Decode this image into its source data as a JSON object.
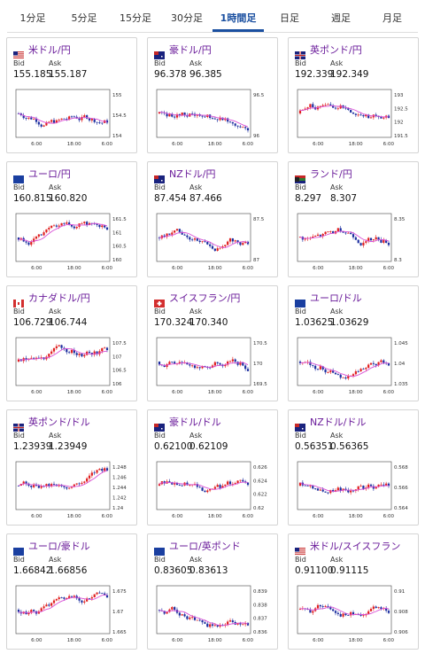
{
  "tabs": [
    {
      "label": "1分足",
      "active": false
    },
    {
      "label": "5分足",
      "active": false
    },
    {
      "label": "15分足",
      "active": false
    },
    {
      "label": "30分足",
      "active": false
    },
    {
      "label": "1時間足",
      "active": true
    },
    {
      "label": "日足",
      "active": false
    },
    {
      "label": "週足",
      "active": false
    },
    {
      "label": "月足",
      "active": false
    }
  ],
  "labels": {
    "bid": "Bid",
    "ask": "Ask"
  },
  "colors": {
    "up": "#e02020",
    "down": "#1d2fa0",
    "ma": "#d94fd6",
    "accent": "#1a4fa0",
    "pair": "#6a1b9a"
  },
  "cards": [
    {
      "pair": "米ドル/円",
      "flag": "us",
      "bid": "155.185",
      "ask": "155.187",
      "x_ticks": [
        "6:00",
        "18:00",
        "6:00"
      ],
      "y_ticks": [
        "155",
        "154.5",
        "154"
      ]
    },
    {
      "pair": "豪ドル/円",
      "flag": "au",
      "bid": "96.378",
      "ask": "96.385",
      "x_ticks": [
        "6:00",
        "18:00",
        "6:00"
      ],
      "y_ticks": [
        "96.5",
        "96"
      ]
    },
    {
      "pair": "英ポンド/円",
      "flag": "uk",
      "bid": "192.339",
      "ask": "192.349",
      "x_ticks": [
        "6:00",
        "18:00",
        "6:00"
      ],
      "y_ticks": [
        "193",
        "192.5",
        "192",
        "191.5"
      ]
    },
    {
      "pair": "ユーロ/円",
      "flag": "eu",
      "bid": "160.815",
      "ask": "160.820",
      "x_ticks": [
        "6:00",
        "18:00",
        "6:00"
      ],
      "y_ticks": [
        "161.5",
        "161",
        "160.5",
        "160"
      ]
    },
    {
      "pair": "NZドル/円",
      "flag": "nz",
      "bid": "87.454",
      "ask": "87.466",
      "x_ticks": [
        "6:00",
        "18:00",
        "6:00"
      ],
      "y_ticks": [
        "87.5",
        "87"
      ]
    },
    {
      "pair": "ランド/円",
      "flag": "za",
      "bid": "8.297",
      "ask": "8.307",
      "x_ticks": [
        "6:00",
        "18:00",
        "6:00"
      ],
      "y_ticks": [
        "8.35",
        "8.3"
      ]
    },
    {
      "pair": "カナダドル/円",
      "flag": "ca",
      "bid": "106.729",
      "ask": "106.744",
      "x_ticks": [
        "6:00",
        "18:00",
        "6:00"
      ],
      "y_ticks": [
        "107.5",
        "107",
        "106.5",
        "106"
      ]
    },
    {
      "pair": "スイスフラン/円",
      "flag": "ch",
      "bid": "170.324",
      "ask": "170.340",
      "x_ticks": [
        "6:00",
        "18:00",
        "6:00"
      ],
      "y_ticks": [
        "170.5",
        "170",
        "169.5"
      ]
    },
    {
      "pair": "ユーロ/ドル",
      "flag": "eu",
      "bid": "1.03625",
      "ask": "1.03629",
      "x_ticks": [
        "6:00",
        "18:00",
        "6:00"
      ],
      "y_ticks": [
        "1.045",
        "1.04",
        "1.035"
      ]
    },
    {
      "pair": "英ポンド/ドル",
      "flag": "uk",
      "bid": "1.23939",
      "ask": "1.23949",
      "x_ticks": [
        "6:00",
        "18:00",
        "6:00"
      ],
      "y_ticks": [
        "1.248",
        "1.246",
        "1.244",
        "1.242",
        "1.24"
      ]
    },
    {
      "pair": "豪ドル/ドル",
      "flag": "au",
      "bid": "0.62100",
      "ask": "0.62109",
      "x_ticks": [
        "6:00",
        "18:00",
        "6:00"
      ],
      "y_ticks": [
        "0.626",
        "0.624",
        "0.622",
        "0.62"
      ]
    },
    {
      "pair": "NZドル/ドル",
      "flag": "nz",
      "bid": "0.56351",
      "ask": "0.56365",
      "x_ticks": [
        "6:00",
        "18:00",
        "6:00"
      ],
      "y_ticks": [
        "0.568",
        "0.566",
        "0.564"
      ]
    },
    {
      "pair": "ユーロ/豪ドル",
      "flag": "eu",
      "bid": "1.66842",
      "ask": "1.66856",
      "x_ticks": [
        "6:00",
        "18:00",
        "6:00"
      ],
      "y_ticks": [
        "1.675",
        "1.67",
        "1.665"
      ]
    },
    {
      "pair": "ユーロ/英ポンド",
      "flag": "eu",
      "bid": "0.83605",
      "ask": "0.83613",
      "x_ticks": [
        "6:00",
        "18:00",
        "6:00"
      ],
      "y_ticks": [
        "0.839",
        "0.838",
        "0.837",
        "0.836"
      ]
    },
    {
      "pair": "米ドル/スイスフラン",
      "flag": "us",
      "bid": "0.91100",
      "ask": "0.91115",
      "x_ticks": [
        "6:00",
        "18:00",
        "6:00"
      ],
      "y_ticks": [
        "0.91",
        "0.908",
        "0.906"
      ]
    }
  ]
}
